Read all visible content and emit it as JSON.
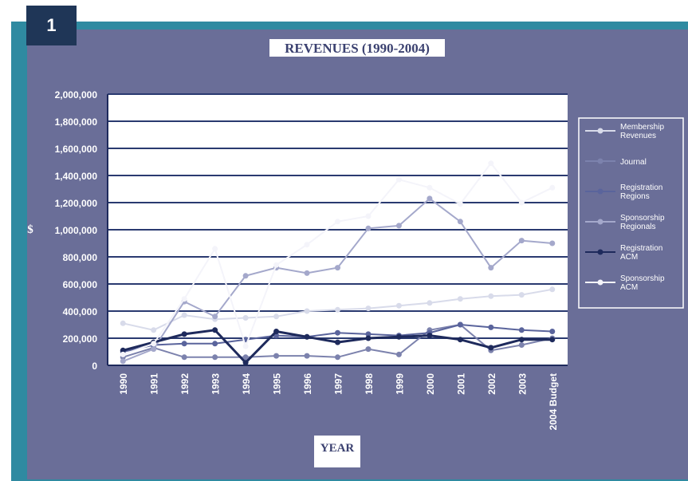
{
  "badge": "1",
  "colors": {
    "frame": "#2f8aa1",
    "panel": "#6a6e98",
    "badge": "#1f3657",
    "plot_bg": "#ffffff",
    "grid": "#2a3a70",
    "axis_text": "#ffffff"
  },
  "chart_data": {
    "type": "line",
    "title": "REVENUES (1990-2004)",
    "xlabel": "YEAR",
    "ylabel": "$",
    "ylim": [
      0,
      2000000
    ],
    "yticks": [
      0,
      200000,
      400000,
      600000,
      800000,
      1000000,
      1200000,
      1400000,
      1600000,
      1800000,
      2000000
    ],
    "ytick_labels": [
      "0",
      "200,000",
      "400,000",
      "600,000",
      "800,000",
      "1,000,000",
      "1,200,000",
      "1,400,000",
      "1,600,000",
      "1,800,000",
      "2,000,000"
    ],
    "grid": true,
    "legend_position": "right",
    "categories": [
      "1990",
      "1991",
      "1992",
      "1993",
      "1994",
      "1995",
      "1996",
      "1997",
      "1998",
      "1999",
      "2000",
      "2001",
      "2002",
      "2003",
      "2004 Budget"
    ],
    "series": [
      {
        "name": "Membership Revenues",
        "color": "#d8dbea",
        "values": [
          310000,
          260000,
          370000,
          340000,
          350000,
          360000,
          400000,
          410000,
          420000,
          440000,
          460000,
          490000,
          510000,
          520000,
          560000
        ]
      },
      {
        "name": "Journal",
        "color": "#7c82ad",
        "values": [
          60000,
          130000,
          60000,
          60000,
          60000,
          70000,
          70000,
          60000,
          120000,
          80000,
          260000,
          300000,
          110000,
          150000,
          200000
        ]
      },
      {
        "name": "Registration Regions",
        "color": "#5a649c",
        "values": [
          100000,
          150000,
          160000,
          160000,
          190000,
          220000,
          210000,
          240000,
          230000,
          220000,
          240000,
          300000,
          280000,
          260000,
          250000
        ]
      },
      {
        "name": "Sponsorship Regionals",
        "color": "#a4a8cb",
        "values": [
          30000,
          120000,
          470000,
          360000,
          660000,
          720000,
          680000,
          720000,
          1010000,
          1030000,
          1230000,
          1060000,
          720000,
          920000,
          900000
        ]
      },
      {
        "name": "Registration ACM",
        "color": "#1e2a5c",
        "values": [
          110000,
          170000,
          230000,
          260000,
          20000,
          250000,
          210000,
          170000,
          200000,
          210000,
          220000,
          190000,
          130000,
          190000,
          190000
        ]
      },
      {
        "name": "Sponsorship ACM",
        "color": "#f4f4fa",
        "values": [
          80000,
          160000,
          490000,
          860000,
          140000,
          740000,
          890000,
          1060000,
          1100000,
          1370000,
          1310000,
          1190000,
          1490000,
          1200000,
          1310000
        ]
      }
    ]
  }
}
